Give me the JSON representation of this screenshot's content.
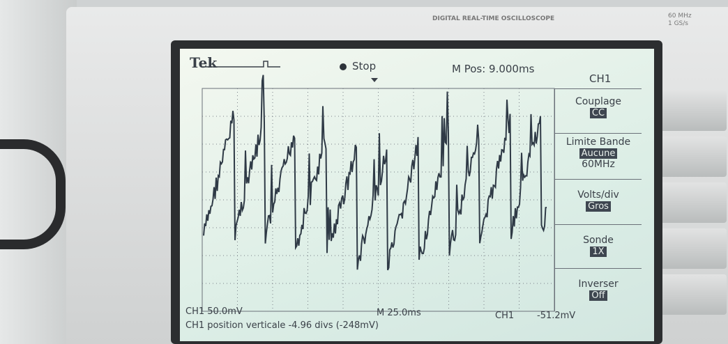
{
  "bezel": {
    "model": "DIGITAL REAL-TIME OSCILLOSCOPE",
    "bandwidth": "60 MHz",
    "sample_rate": "1 GS/s"
  },
  "status_bar": {
    "brand": "Tek",
    "state": "Stop",
    "position": "M Pos: 9.000ms",
    "channel": "CH1"
  },
  "menu": [
    {
      "label": "Couplage",
      "value": "CC"
    },
    {
      "label": "Limite Bande",
      "value": "Aucune",
      "extra": "60MHz"
    },
    {
      "label": "Volts/div",
      "value": "Gros"
    },
    {
      "label": "Sonde",
      "value": "1X"
    },
    {
      "label": "Inverser",
      "value": "Off"
    }
  ],
  "readout": {
    "channel_scale": "CH1 50.0mV",
    "time_scale": "M 25.0ms",
    "trigger_source": "CH1",
    "trigger_level": "-51.2mV",
    "message": "CH1 position verticale -4.96 divs (-248mV)"
  }
}
